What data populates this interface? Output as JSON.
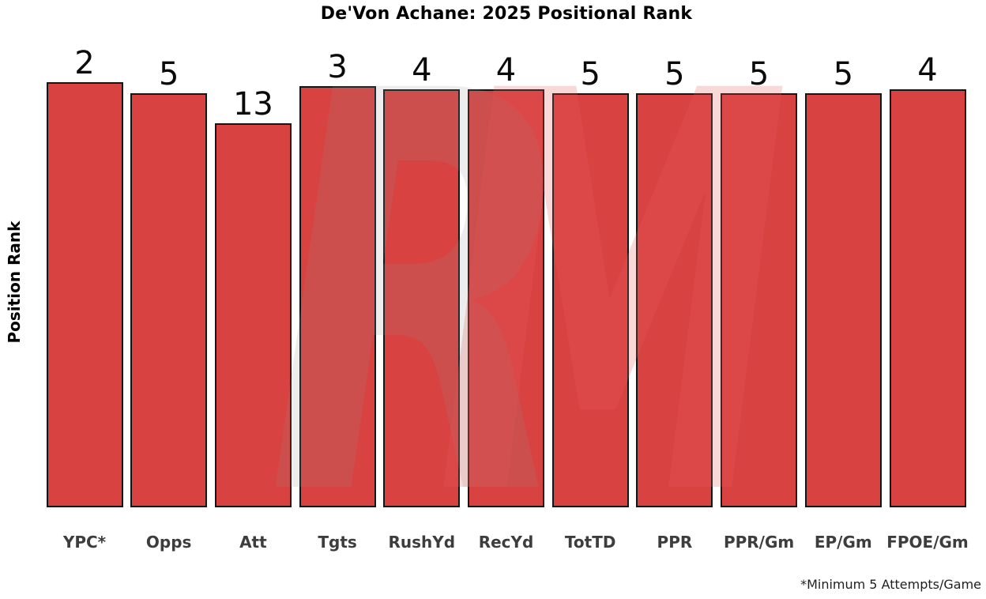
{
  "chart_data": {
    "type": "bar",
    "title": "De'Von Achane: 2025 Positional Rank",
    "ylabel": "Position Rank",
    "xlabel": "",
    "categories": [
      "YPC*",
      "Opps",
      "Att",
      "Tgts",
      "RushYd",
      "RecYd",
      "TotTD",
      "PPR",
      "PPR/Gm",
      "EP/Gm",
      "FPOE/Gm"
    ],
    "values": [
      2,
      5,
      13,
      3,
      4,
      4,
      5,
      5,
      5,
      5,
      4
    ],
    "series_note": "values are positional ranks shown as data labels above each bar; lower rank = taller bar; y-axis has no tick marks or gridlines",
    "footnote": "*Minimum 5 Attempts/Game",
    "bar_color": "#d84241",
    "bar_edge_color": "#151515",
    "legend": null,
    "grid": false
  },
  "watermark": {
    "letters": [
      {
        "char": "R",
        "color": "#8f8f8f",
        "opacity": 0.16
      },
      {
        "char": "M",
        "color": "#e85c5c",
        "opacity": 0.24
      }
    ]
  }
}
